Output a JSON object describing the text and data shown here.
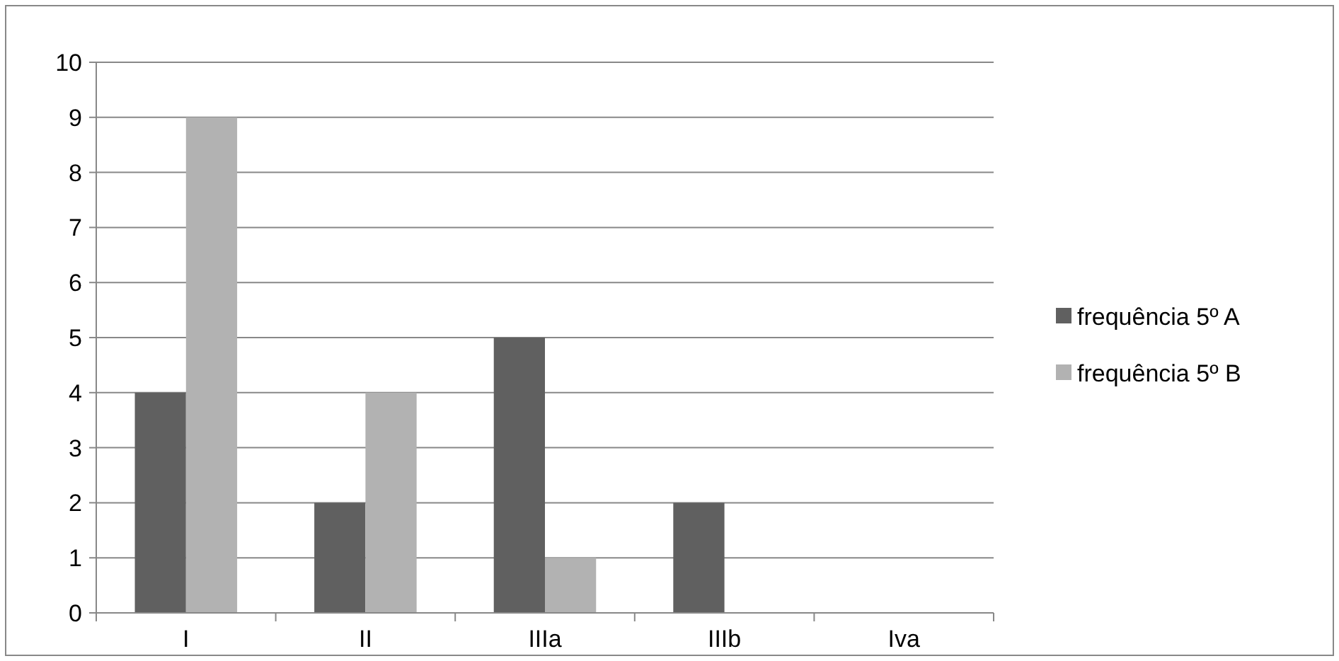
{
  "chart_data": {
    "type": "bar",
    "categories": [
      "I",
      "II",
      "IIIa",
      "IIIb",
      "Iva"
    ],
    "series": [
      {
        "name": "frequência 5º A",
        "color": "#606060",
        "values": [
          4,
          2,
          5,
          2,
          0
        ]
      },
      {
        "name": "frequência 5º B",
        "color": "#b2b2b2",
        "values": [
          9,
          4,
          1,
          0,
          0
        ]
      }
    ],
    "ylim": [
      0,
      10
    ],
    "yticks": [
      0,
      1,
      2,
      3,
      4,
      5,
      6,
      7,
      8,
      9,
      10
    ],
    "grid": "y",
    "legend": "right"
  }
}
